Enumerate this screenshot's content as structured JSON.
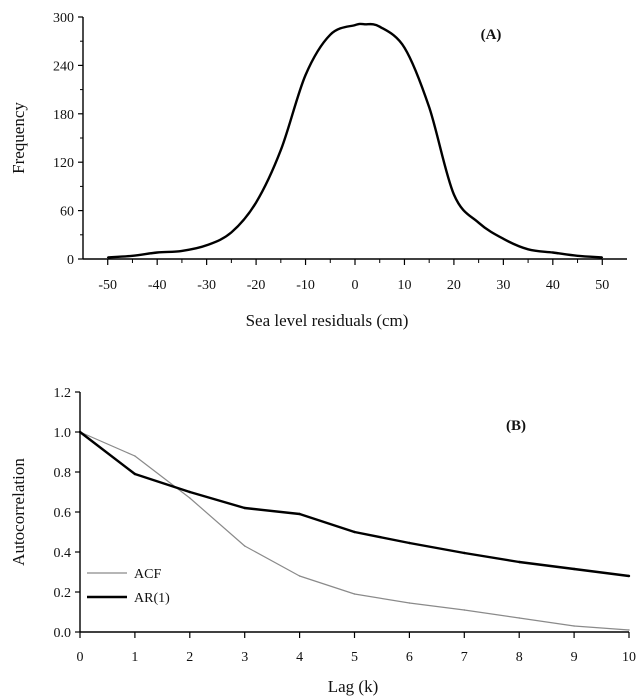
{
  "chart_data": [
    {
      "type": "line",
      "panel_label": "(A)",
      "xlabel": "Sea level residuals (cm)",
      "ylabel": "Frequency",
      "xlim": [
        -55,
        55
      ],
      "ylim": [
        0,
        300
      ],
      "xticks": [
        -50,
        -40,
        -30,
        -20,
        -10,
        0,
        10,
        20,
        30,
        40,
        50
      ],
      "yticks": [
        0,
        60,
        120,
        180,
        240,
        300
      ],
      "grid": false,
      "series": [
        {
          "x": [
            -50,
            -45,
            -40,
            -35,
            -30,
            -25,
            -20,
            -15,
            -10,
            -5,
            0,
            2,
            5,
            10,
            15,
            20,
            25,
            30,
            35,
            40,
            45,
            50
          ],
          "values": [
            2,
            4,
            8,
            10,
            17,
            33,
            70,
            135,
            228,
            278,
            290,
            291,
            288,
            262,
            188,
            80,
            45,
            25,
            12,
            8,
            4,
            2
          ]
        }
      ]
    },
    {
      "type": "line",
      "panel_label": "(B)",
      "xlabel": "Lag (k)",
      "ylabel": "Autocorrelation",
      "xlim": [
        0,
        10
      ],
      "ylim": [
        0,
        1.2
      ],
      "xticks": [
        0,
        1,
        2,
        3,
        4,
        5,
        6,
        7,
        8,
        9,
        10
      ],
      "yticks": [
        "0.0",
        "0.2",
        "0.4",
        "0.6",
        "0.8",
        "1.0",
        "1.2"
      ],
      "grid": false,
      "legend_position": "bottom-left",
      "series": [
        {
          "name": "ACF",
          "style": "thin",
          "x": [
            0,
            1,
            2,
            3,
            4,
            5,
            6,
            7,
            8,
            9,
            10
          ],
          "values": [
            1.0,
            0.88,
            0.67,
            0.43,
            0.28,
            0.19,
            0.145,
            0.11,
            0.07,
            0.03,
            0.01
          ]
        },
        {
          "name": "AR(1)",
          "style": "thick",
          "x": [
            0,
            1,
            2,
            3,
            4,
            5,
            6,
            7,
            8,
            9,
            10
          ],
          "values": [
            1.0,
            0.79,
            0.7,
            0.62,
            0.59,
            0.5,
            0.445,
            0.395,
            0.35,
            0.315,
            0.28
          ]
        }
      ]
    }
  ]
}
